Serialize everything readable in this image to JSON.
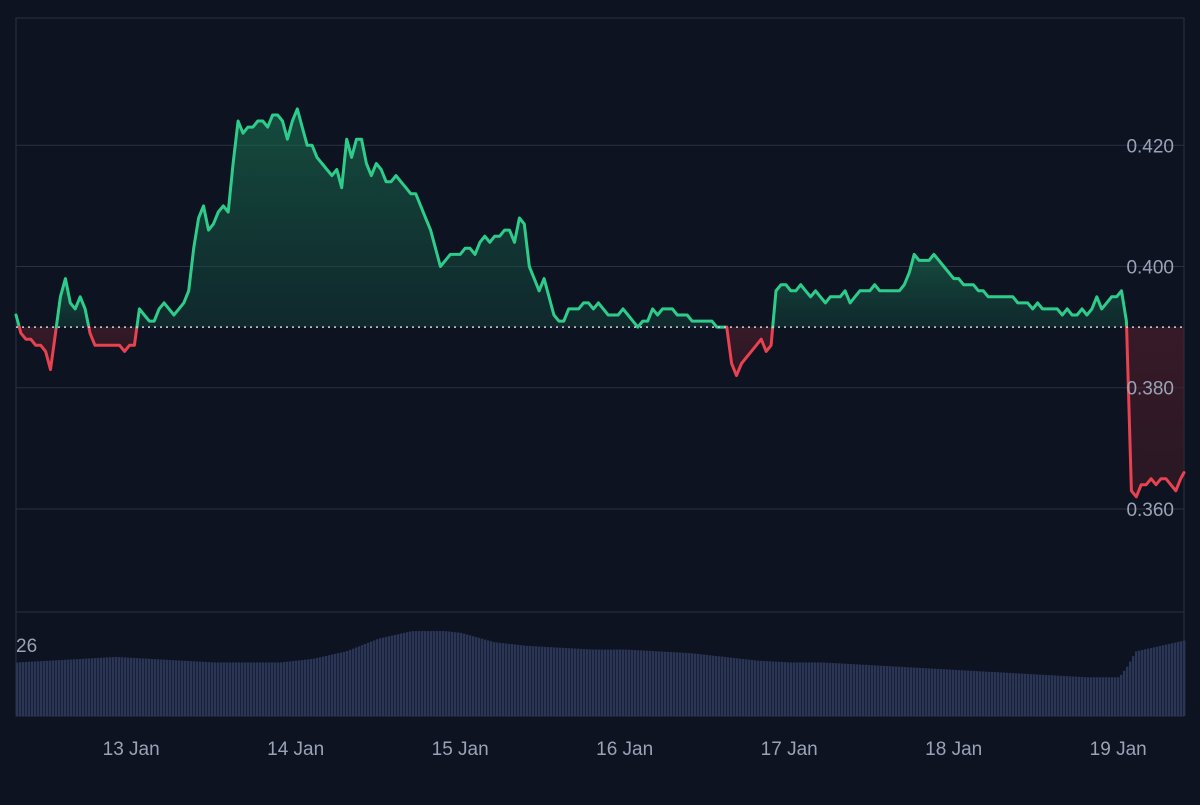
{
  "colors": {
    "background": "#0d1321",
    "grid": "#2a3242",
    "up_line": "#2ecc8a",
    "down_line": "#e8414f",
    "volume": "#2b3556",
    "axis_text": "#9aa3b5",
    "baseline": "#d0d4dc"
  },
  "chart_data": {
    "type": "line",
    "title": "",
    "xlabel": "",
    "ylabel": "",
    "x_ticks": [
      "13 Jan",
      "14 Jan",
      "15 Jan",
      "16 Jan",
      "17 Jan",
      "18 Jan",
      "19 Jan"
    ],
    "x_range": [
      12.3,
      19.4
    ],
    "y_ticks": [
      "0.420",
      "0.400",
      "0.380",
      "0.360"
    ],
    "ylim": [
      0.343,
      0.441
    ],
    "baseline": 0.39,
    "grid": true,
    "series": [
      {
        "values_x": [
          12.3,
          12.33,
          12.36,
          12.39,
          12.42,
          12.45,
          12.48,
          12.51,
          12.54,
          12.57,
          12.6,
          12.63,
          12.66,
          12.69,
          12.72,
          12.75,
          12.78,
          12.81,
          12.84,
          12.87,
          12.9,
          12.93,
          12.96,
          12.99,
          13.02,
          13.05,
          13.08,
          13.11,
          13.14,
          13.17,
          13.2,
          13.23,
          13.26,
          13.29,
          13.32,
          13.35,
          13.38,
          13.41,
          13.44,
          13.47,
          13.5,
          13.53,
          13.56,
          13.59,
          13.62,
          13.65,
          13.68,
          13.71,
          13.74,
          13.77,
          13.8,
          13.83,
          13.86,
          13.89,
          13.92,
          13.95,
          13.98,
          14.01,
          14.04,
          14.07,
          14.1,
          14.13,
          14.16,
          14.19,
          14.22,
          14.25,
          14.28,
          14.31,
          14.34,
          14.37,
          14.4,
          14.43,
          14.46,
          14.49,
          14.52,
          14.55,
          14.58,
          14.61,
          14.64,
          14.67,
          14.7,
          14.73,
          14.76,
          14.79,
          14.82,
          14.85,
          14.88,
          14.91,
          14.94,
          14.97,
          15.0,
          15.03,
          15.06,
          15.09,
          15.12,
          15.15,
          15.18,
          15.21,
          15.24,
          15.27,
          15.3,
          15.33,
          15.36,
          15.39,
          15.42,
          15.45,
          15.48,
          15.51,
          15.54,
          15.57,
          15.6,
          15.63,
          15.66,
          15.69,
          15.72,
          15.75,
          15.78,
          15.81,
          15.84,
          15.87,
          15.9,
          15.93,
          15.96,
          15.99,
          16.02,
          16.05,
          16.08,
          16.11,
          16.14,
          16.17,
          16.2,
          16.23,
          16.26,
          16.29,
          16.32,
          16.35,
          16.38,
          16.41,
          16.44,
          16.47,
          16.5,
          16.53,
          16.56,
          16.59,
          16.62,
          16.65,
          16.68,
          16.71,
          16.74,
          16.77,
          16.8,
          16.83,
          16.86,
          16.89,
          16.92,
          16.95,
          16.98,
          17.01,
          17.04,
          17.07,
          17.1,
          17.13,
          17.16,
          17.19,
          17.22,
          17.25,
          17.28,
          17.31,
          17.34,
          17.37,
          17.4,
          17.43,
          17.46,
          17.49,
          17.52,
          17.55,
          17.58,
          17.61,
          17.64,
          17.67,
          17.7,
          17.73,
          17.76,
          17.79,
          17.82,
          17.85,
          17.88,
          17.91,
          17.94,
          17.97,
          18.0,
          18.03,
          18.06,
          18.09,
          18.12,
          18.15,
          18.18,
          18.21,
          18.24,
          18.27,
          18.3,
          18.33,
          18.36,
          18.39,
          18.42,
          18.45,
          18.48,
          18.51,
          18.54,
          18.57,
          18.6,
          18.63,
          18.66,
          18.69,
          18.72,
          18.75,
          18.78,
          18.81,
          18.84,
          18.87,
          18.9,
          18.93,
          18.96,
          18.99,
          19.02,
          19.05,
          19.08,
          19.11,
          19.14,
          19.17,
          19.2,
          19.23,
          19.26,
          19.29,
          19.32,
          19.35,
          19.38,
          19.4
        ],
        "values_y": [
          0.392,
          0.389,
          0.388,
          0.388,
          0.387,
          0.387,
          0.386,
          0.383,
          0.389,
          0.395,
          0.398,
          0.394,
          0.393,
          0.395,
          0.393,
          0.389,
          0.387,
          0.387,
          0.387,
          0.387,
          0.387,
          0.387,
          0.386,
          0.387,
          0.387,
          0.393,
          0.392,
          0.391,
          0.391,
          0.393,
          0.394,
          0.393,
          0.392,
          0.393,
          0.394,
          0.396,
          0.403,
          0.408,
          0.41,
          0.406,
          0.407,
          0.409,
          0.41,
          0.409,
          0.417,
          0.424,
          0.422,
          0.423,
          0.423,
          0.424,
          0.424,
          0.423,
          0.425,
          0.425,
          0.424,
          0.421,
          0.424,
          0.426,
          0.423,
          0.42,
          0.42,
          0.418,
          0.417,
          0.416,
          0.415,
          0.416,
          0.413,
          0.421,
          0.418,
          0.421,
          0.421,
          0.417,
          0.415,
          0.417,
          0.416,
          0.414,
          0.414,
          0.415,
          0.414,
          0.413,
          0.412,
          0.412,
          0.41,
          0.408,
          0.406,
          0.403,
          0.4,
          0.401,
          0.402,
          0.402,
          0.402,
          0.403,
          0.403,
          0.402,
          0.404,
          0.405,
          0.404,
          0.405,
          0.405,
          0.406,
          0.406,
          0.404,
          0.408,
          0.407,
          0.4,
          0.398,
          0.396,
          0.398,
          0.395,
          0.392,
          0.391,
          0.391,
          0.393,
          0.393,
          0.393,
          0.394,
          0.394,
          0.393,
          0.394,
          0.393,
          0.392,
          0.392,
          0.392,
          0.393,
          0.392,
          0.391,
          0.39,
          0.391,
          0.391,
          0.393,
          0.392,
          0.393,
          0.393,
          0.393,
          0.392,
          0.392,
          0.392,
          0.391,
          0.391,
          0.391,
          0.391,
          0.391,
          0.39,
          0.39,
          0.39,
          0.384,
          0.382,
          0.384,
          0.385,
          0.386,
          0.387,
          0.388,
          0.386,
          0.387,
          0.396,
          0.397,
          0.397,
          0.396,
          0.396,
          0.397,
          0.396,
          0.395,
          0.396,
          0.395,
          0.394,
          0.395,
          0.395,
          0.395,
          0.396,
          0.394,
          0.395,
          0.396,
          0.396,
          0.396,
          0.397,
          0.396,
          0.396,
          0.396,
          0.396,
          0.396,
          0.397,
          0.399,
          0.402,
          0.401,
          0.401,
          0.401,
          0.402,
          0.401,
          0.4,
          0.399,
          0.398,
          0.398,
          0.397,
          0.397,
          0.397,
          0.396,
          0.396,
          0.395,
          0.395,
          0.395,
          0.395,
          0.395,
          0.395,
          0.394,
          0.394,
          0.394,
          0.393,
          0.394,
          0.393,
          0.393,
          0.393,
          0.393,
          0.392,
          0.393,
          0.392,
          0.392,
          0.393,
          0.392,
          0.393,
          0.395,
          0.393,
          0.394,
          0.395,
          0.395,
          0.396,
          0.391,
          0.363,
          0.362,
          0.364,
          0.364,
          0.365,
          0.364,
          0.365,
          0.365,
          0.364,
          0.363,
          0.365,
          0.366
        ]
      }
    ],
    "volume": {
      "visible_label": "26",
      "values_x": [
        12.3,
        12.5,
        12.7,
        12.9,
        13.1,
        13.3,
        13.5,
        13.7,
        13.9,
        14.1,
        14.3,
        14.5,
        14.7,
        14.9,
        15.0,
        15.2,
        15.4,
        15.6,
        15.8,
        16.0,
        16.2,
        16.4,
        16.6,
        16.8,
        17.0,
        17.2,
        17.4,
        17.6,
        17.8,
        18.0,
        18.2,
        18.4,
        18.6,
        18.8,
        19.0,
        19.05,
        19.1,
        19.2,
        19.3,
        19.4
      ],
      "values": [
        14.5,
        15.0,
        15.5,
        16.0,
        15.5,
        15.0,
        14.5,
        14.5,
        14.5,
        15.5,
        17.5,
        21.0,
        23.0,
        23.0,
        22.5,
        20.0,
        19.0,
        18.5,
        18.0,
        18.0,
        17.5,
        17.0,
        16.0,
        15.0,
        14.5,
        14.5,
        14.0,
        13.5,
        13.0,
        12.5,
        12.0,
        11.5,
        11.0,
        10.5,
        10.5,
        13.5,
        17.5,
        18.5,
        19.5,
        20.5
      ]
    }
  }
}
